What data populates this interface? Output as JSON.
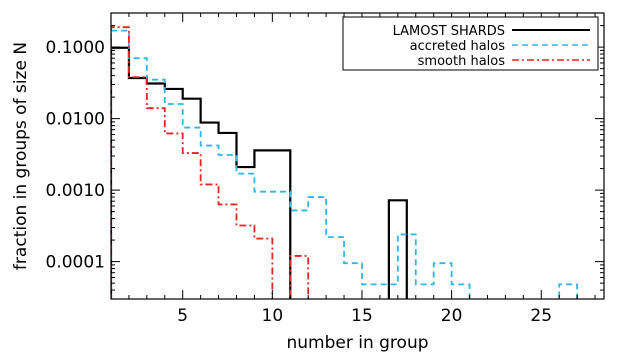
{
  "chart_data": {
    "type": "step",
    "xlabel": "number in group",
    "ylabel": "fraction in groups of size N",
    "xlim": [
      1,
      28.5
    ],
    "ylim": [
      3e-05,
      0.3
    ],
    "yscale": "log",
    "x_ticks": [
      5,
      10,
      15,
      20,
      25
    ],
    "x_tick_labels": [
      "5",
      "10",
      "15",
      "20",
      "25"
    ],
    "y_ticks": [
      0.0001,
      0.001,
      0.01,
      0.1
    ],
    "y_tick_labels": [
      "0.0001",
      "0.0010",
      "0.0100",
      "0.1000"
    ],
    "legend_position": "top-right",
    "series": [
      {
        "name": "LAMOST SHARDS",
        "color": "#000000",
        "dash": "solid",
        "bins": [
          [
            1,
            2,
            0.098
          ],
          [
            2,
            3,
            0.037
          ],
          [
            3,
            4,
            0.031
          ],
          [
            4,
            5,
            0.026
          ],
          [
            5,
            6,
            0.019
          ],
          [
            6,
            7,
            0.0088
          ],
          [
            7,
            8,
            0.0063
          ],
          [
            8,
            9,
            0.0021
          ],
          [
            9,
            10,
            0.0036
          ],
          [
            10,
            11,
            0.0036
          ],
          [
            16.5,
            17.5,
            0.00072
          ]
        ]
      },
      {
        "name": "accreted halos",
        "color": "#2fb6e8",
        "dash": "dashed",
        "bins": [
          [
            1,
            2,
            0.17
          ],
          [
            2,
            3,
            0.07
          ],
          [
            3,
            4,
            0.035
          ],
          [
            4,
            5,
            0.016
          ],
          [
            5,
            6,
            0.0075
          ],
          [
            6,
            7,
            0.0042
          ],
          [
            7,
            8,
            0.0031
          ],
          [
            8,
            9,
            0.0017
          ],
          [
            9,
            10,
            0.00095
          ],
          [
            10,
            11,
            0.00095
          ],
          [
            11,
            12,
            0.00052
          ],
          [
            12,
            13,
            0.0008
          ],
          [
            13,
            14,
            0.00022
          ],
          [
            14,
            15,
            9.5e-05
          ],
          [
            15,
            16,
            4.8e-05
          ],
          [
            16,
            17,
            4.8e-05
          ],
          [
            17,
            18,
            0.00024
          ],
          [
            18,
            19,
            4.8e-05
          ],
          [
            19,
            20,
            9.5e-05
          ],
          [
            20,
            21,
            4.8e-05
          ],
          [
            26,
            27,
            4.8e-05
          ]
        ]
      },
      {
        "name": "smooth halos",
        "color": "#e0281e",
        "dash": "dashdot",
        "bins": [
          [
            1,
            2,
            0.19
          ],
          [
            2,
            3,
            0.038
          ],
          [
            3,
            4,
            0.014
          ],
          [
            4,
            5,
            0.0062
          ],
          [
            5,
            6,
            0.0033
          ],
          [
            6,
            7,
            0.0012
          ],
          [
            7,
            8,
            0.00063
          ],
          [
            8,
            9,
            0.00032
          ],
          [
            9,
            10,
            0.00021
          ],
          [
            10,
            11,
            1e-05
          ],
          [
            11,
            12,
            0.00012
          ]
        ]
      }
    ]
  }
}
